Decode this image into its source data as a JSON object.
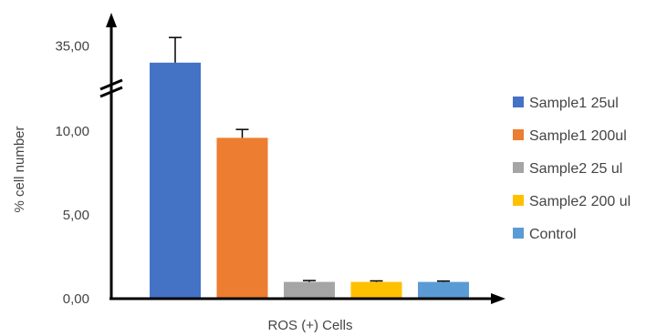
{
  "chart_data": {
    "type": "bar",
    "xlabel": "ROS (+) Cells",
    "ylabel": "% cell number",
    "yticks": [
      "0,00",
      "5,00",
      "10,00",
      "35,00"
    ],
    "axis_break": {
      "from": 12,
      "to": 33
    },
    "ylim": [
      0,
      37
    ],
    "legend_position": "right",
    "series": [
      {
        "name": "Sample1 25ul",
        "value": 34.0,
        "error": 1.5,
        "color": "#4472C4"
      },
      {
        "name": "Sample1 200ul",
        "value": 9.6,
        "error": 0.5,
        "color": "#ED7D31"
      },
      {
        "name": "Sample2 25 ul",
        "value": 1.0,
        "error": 0.08,
        "color": "#A5A5A5"
      },
      {
        "name": "Sample2 200 ul",
        "value": 1.0,
        "error": 0.06,
        "color": "#FFC000"
      },
      {
        "name": "Control",
        "value": 1.0,
        "error": 0.05,
        "color": "#5B9BD5"
      }
    ]
  }
}
